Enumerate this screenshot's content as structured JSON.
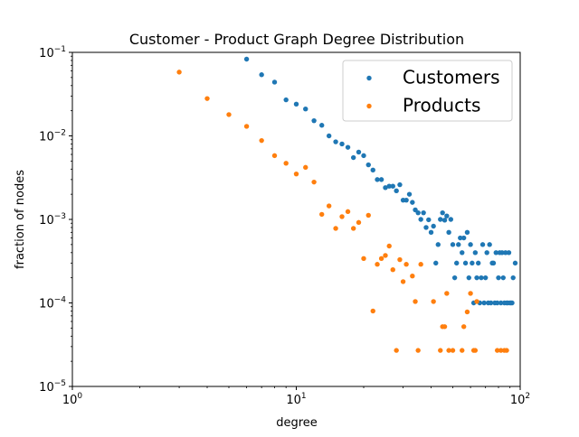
{
  "chart_data": {
    "type": "scatter",
    "title": "Customer - Product Graph Degree Distribution",
    "xlabel": "degree",
    "ylabel": "fraction of nodes",
    "xscale": "log",
    "yscale": "log",
    "xlim": [
      1,
      100
    ],
    "ylim": [
      1e-05,
      0.1
    ],
    "grid": false,
    "legend_position": "top-right",
    "x_ticks": [
      {
        "value": 1,
        "base": "10",
        "exp": "0"
      },
      {
        "value": 10,
        "base": "10",
        "exp": "1"
      },
      {
        "value": 100,
        "base": "10",
        "exp": "2"
      }
    ],
    "y_ticks": [
      {
        "value": 1e-05,
        "base": "10",
        "exp": "−5"
      },
      {
        "value": 0.0001,
        "base": "10",
        "exp": "−4"
      },
      {
        "value": 0.001,
        "base": "10",
        "exp": "−3"
      },
      {
        "value": 0.01,
        "base": "10",
        "exp": "−2"
      },
      {
        "value": 0.1,
        "base": "10",
        "exp": "−1"
      }
    ],
    "series": [
      {
        "name": "Customers",
        "color": "#1f77b4",
        "points": [
          [
            6,
            0.083
          ],
          [
            7,
            0.054
          ],
          [
            8,
            0.044
          ],
          [
            9,
            0.027
          ],
          [
            10,
            0.024
          ],
          [
            11,
            0.021
          ],
          [
            12,
            0.0152
          ],
          [
            13,
            0.0134
          ],
          [
            14,
            0.01
          ],
          [
            15,
            0.0085
          ],
          [
            16,
            0.008
          ],
          [
            17,
            0.0073
          ],
          [
            18,
            0.0055
          ],
          [
            19,
            0.0064
          ],
          [
            20,
            0.0058
          ],
          [
            21,
            0.0045
          ],
          [
            22,
            0.0039
          ],
          [
            23,
            0.003
          ],
          [
            24,
            0.003
          ],
          [
            25,
            0.0024
          ],
          [
            26,
            0.0025
          ],
          [
            27,
            0.0025
          ],
          [
            28,
            0.0022
          ],
          [
            29,
            0.0026
          ],
          [
            30,
            0.0017
          ],
          [
            31,
            0.0017
          ],
          [
            32,
            0.002
          ],
          [
            33,
            0.0016
          ],
          [
            34,
            0.0013
          ],
          [
            35,
            0.0012
          ],
          [
            36,
            0.001
          ],
          [
            37,
            0.0012
          ],
          [
            38,
            0.0008
          ],
          [
            39,
            0.00099
          ],
          [
            40,
            0.0007
          ],
          [
            41,
            0.00083
          ],
          [
            42,
            0.0003
          ],
          [
            43,
            0.0005
          ],
          [
            44,
            0.001
          ],
          [
            45,
            0.0012
          ],
          [
            46,
            0.00098
          ],
          [
            47,
            0.0011
          ],
          [
            48,
            0.0007
          ],
          [
            49,
            0.001
          ],
          [
            50,
            0.0005
          ],
          [
            51,
            0.0002
          ],
          [
            52,
            0.0003
          ],
          [
            53,
            0.0005
          ],
          [
            54,
            0.0006
          ],
          [
            55,
            0.0004
          ],
          [
            56,
            0.0006
          ],
          [
            57,
            0.0003
          ],
          [
            58,
            0.0007
          ],
          [
            59,
            0.0002
          ],
          [
            60,
            0.0005
          ],
          [
            61,
            0.0003
          ],
          [
            62,
            0.0001
          ],
          [
            63,
            0.0004
          ],
          [
            64,
            0.0002
          ],
          [
            65,
            0.0003
          ],
          [
            66,
            0.0001
          ],
          [
            67,
            0.0002
          ],
          [
            68,
            0.0005
          ],
          [
            69,
            0.0001
          ],
          [
            70,
            0.0002
          ],
          [
            71,
            0.0004
          ],
          [
            72,
            0.0001
          ],
          [
            73,
            0.0005
          ],
          [
            74,
            0.0001
          ],
          [
            75,
            0.0003
          ],
          [
            76,
            0.0003
          ],
          [
            77,
            0.0001
          ],
          [
            78,
            0.0004
          ],
          [
            79,
            0.0001
          ],
          [
            80,
            0.0002
          ],
          [
            81,
            0.0004
          ],
          [
            82,
            0.0001
          ],
          [
            83,
            0.0004
          ],
          [
            84,
            0.0002
          ],
          [
            85,
            0.0001
          ],
          [
            86,
            0.0004
          ],
          [
            87,
            0.0001
          ],
          [
            88,
            0.0001
          ],
          [
            89,
            0.0004
          ],
          [
            90,
            0.0001
          ],
          [
            91,
            0.0001
          ],
          [
            92,
            0.0001
          ],
          [
            93,
            0.0002
          ],
          [
            95,
            0.0003
          ]
        ]
      },
      {
        "name": "Products",
        "color": "#ff7f0e",
        "points": [
          [
            3,
            0.058
          ],
          [
            4,
            0.028
          ],
          [
            5,
            0.018
          ],
          [
            6,
            0.013
          ],
          [
            7,
            0.0088
          ],
          [
            8,
            0.0058
          ],
          [
            9,
            0.0047
          ],
          [
            10,
            0.0035
          ],
          [
            11,
            0.0042
          ],
          [
            12,
            0.0028
          ],
          [
            13,
            0.00115
          ],
          [
            14,
            0.00145
          ],
          [
            15,
            0.00078
          ],
          [
            16,
            0.00108
          ],
          [
            17,
            0.00124
          ],
          [
            18,
            0.00078
          ],
          [
            19,
            0.00092
          ],
          [
            20,
            0.00034
          ],
          [
            21,
            0.00112
          ],
          [
            22,
            8e-05
          ],
          [
            23,
            0.00029
          ],
          [
            24,
            0.00034
          ],
          [
            25,
            0.00037
          ],
          [
            26,
            0.00048
          ],
          [
            27,
            0.00025
          ],
          [
            28,
            2.7e-05
          ],
          [
            29,
            0.00033
          ],
          [
            30,
            0.00018
          ],
          [
            31,
            0.00029
          ],
          [
            33,
            0.00021
          ],
          [
            34,
            0.000104
          ],
          [
            35,
            2.7e-05
          ],
          [
            36,
            0.00029
          ],
          [
            41,
            0.000104
          ],
          [
            44,
            2.7e-05
          ],
          [
            45,
            5.2e-05
          ],
          [
            46,
            5.2e-05
          ],
          [
            47,
            0.00013
          ],
          [
            48,
            2.7e-05
          ],
          [
            50,
            2.7e-05
          ],
          [
            55,
            2.7e-05
          ],
          [
            56,
            5.2e-05
          ],
          [
            58,
            7.8e-05
          ],
          [
            60,
            0.00013
          ],
          [
            62,
            2.7e-05
          ],
          [
            63,
            2.7e-05
          ],
          [
            64,
            0.000104
          ],
          [
            79,
            2.7e-05
          ],
          [
            82,
            2.7e-05
          ],
          [
            85,
            2.7e-05
          ],
          [
            87,
            2.7e-05
          ]
        ]
      }
    ]
  }
}
